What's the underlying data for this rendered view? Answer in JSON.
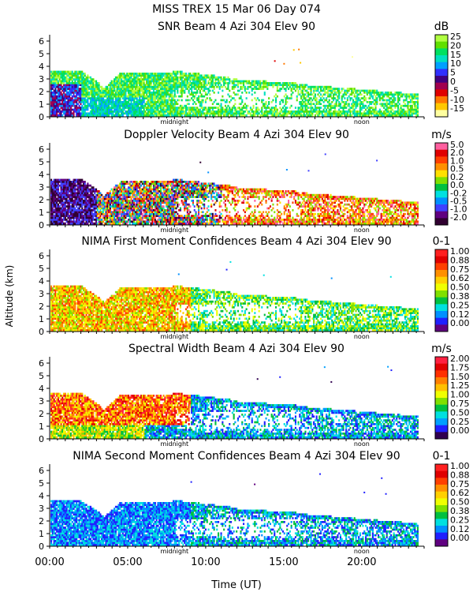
{
  "header": {
    "title": "MISS TREX  15 Mar 06 Day 074"
  },
  "chart_data": {
    "type": "heatmap",
    "xlabel": "Time (UT)",
    "ylabel": "Altitude (km)",
    "xlim": [
      0,
      24
    ],
    "ylim": [
      0,
      6.5
    ],
    "x_ticks": [
      "00:00",
      "05:00",
      "10:00",
      "15:00",
      "20:00"
    ],
    "x_tick_values": [
      0,
      5,
      10,
      15,
      20
    ],
    "y_ticks": [
      "0",
      "1",
      "2",
      "3",
      "4",
      "5",
      "6"
    ],
    "markers": [
      {
        "label": "midnight",
        "x": 8
      },
      {
        "label": "noon",
        "x": 20
      }
    ],
    "panels": [
      {
        "title": "SNR Beam 4 Azi 304 Elev 90",
        "units": "dB",
        "colorbar": [
          "25",
          "20",
          "15",
          "10",
          "5",
          "0",
          "-5",
          "-10",
          "-15"
        ],
        "colors": [
          "#ffffa0",
          "#ffc800",
          "#ff7800",
          "#e00000",
          "#a00050",
          "#400080",
          "#3030ff",
          "#00a0ff",
          "#00e0c0",
          "#00e060",
          "#60e000",
          "#b0ff40"
        ],
        "field": "snr"
      },
      {
        "title": "Doppler Velocity Beam 4 Azi 304 Elev 90",
        "units": "m/s",
        "colorbar": [
          "5.0",
          "2.0",
          "1.0",
          "0.5",
          "0.2",
          "0.0",
          "-0.2",
          "-0.5",
          "-1.0",
          "-2.0"
        ],
        "colors": [
          "#300030",
          "#600080",
          "#4040ff",
          "#0090ff",
          "#00e0e0",
          "#00c040",
          "#80e000",
          "#ffe000",
          "#ff9000",
          "#ff4000",
          "#e00000",
          "#ff60a0"
        ],
        "field": "doppler"
      },
      {
        "title": "NIMA First Moment Confidences Beam 4 Azi 304 Elev 90",
        "units": "0-1",
        "colorbar": [
          "1.00",
          "0.88",
          "0.75",
          "0.62",
          "0.50",
          "0.38",
          "0.25",
          "0.12",
          "0.00"
        ],
        "colors": [
          "#600080",
          "#2020ff",
          "#0090ff",
          "#00e0e0",
          "#00c040",
          "#80e000",
          "#f0ff00",
          "#ffd000",
          "#ff9000",
          "#ff4000",
          "#e00000",
          "#ff2020"
        ],
        "field": "conf1"
      },
      {
        "title": "Spectral Width Beam 4 Azi 304 Elev 90",
        "units": "m/s",
        "colorbar": [
          "2.00",
          "1.75",
          "1.50",
          "1.25",
          "1.00",
          "0.75",
          "0.50",
          "0.25",
          "0.00"
        ],
        "colors": [
          "#300050",
          "#2020ff",
          "#00a0ff",
          "#00e0e0",
          "#00c040",
          "#80e000",
          "#f0ff00",
          "#ffc000",
          "#ff8000",
          "#ff3000",
          "#e00000",
          "#ff2040"
        ],
        "field": "width"
      },
      {
        "title": "NIMA Second Moment Confidences Beam 4 Azi 304 Elev 90",
        "units": "0-1",
        "colorbar": [
          "1.00",
          "0.88",
          "0.75",
          "0.62",
          "0.50",
          "0.38",
          "0.25",
          "0.12",
          "0.00"
        ],
        "colors": [
          "#600080",
          "#2020ff",
          "#0090ff",
          "#00e0e0",
          "#00c040",
          "#80e000",
          "#f0ff00",
          "#ffd000",
          "#ff9000",
          "#ff4000",
          "#e00000",
          "#ff2020"
        ],
        "field": "conf2"
      }
    ]
  }
}
